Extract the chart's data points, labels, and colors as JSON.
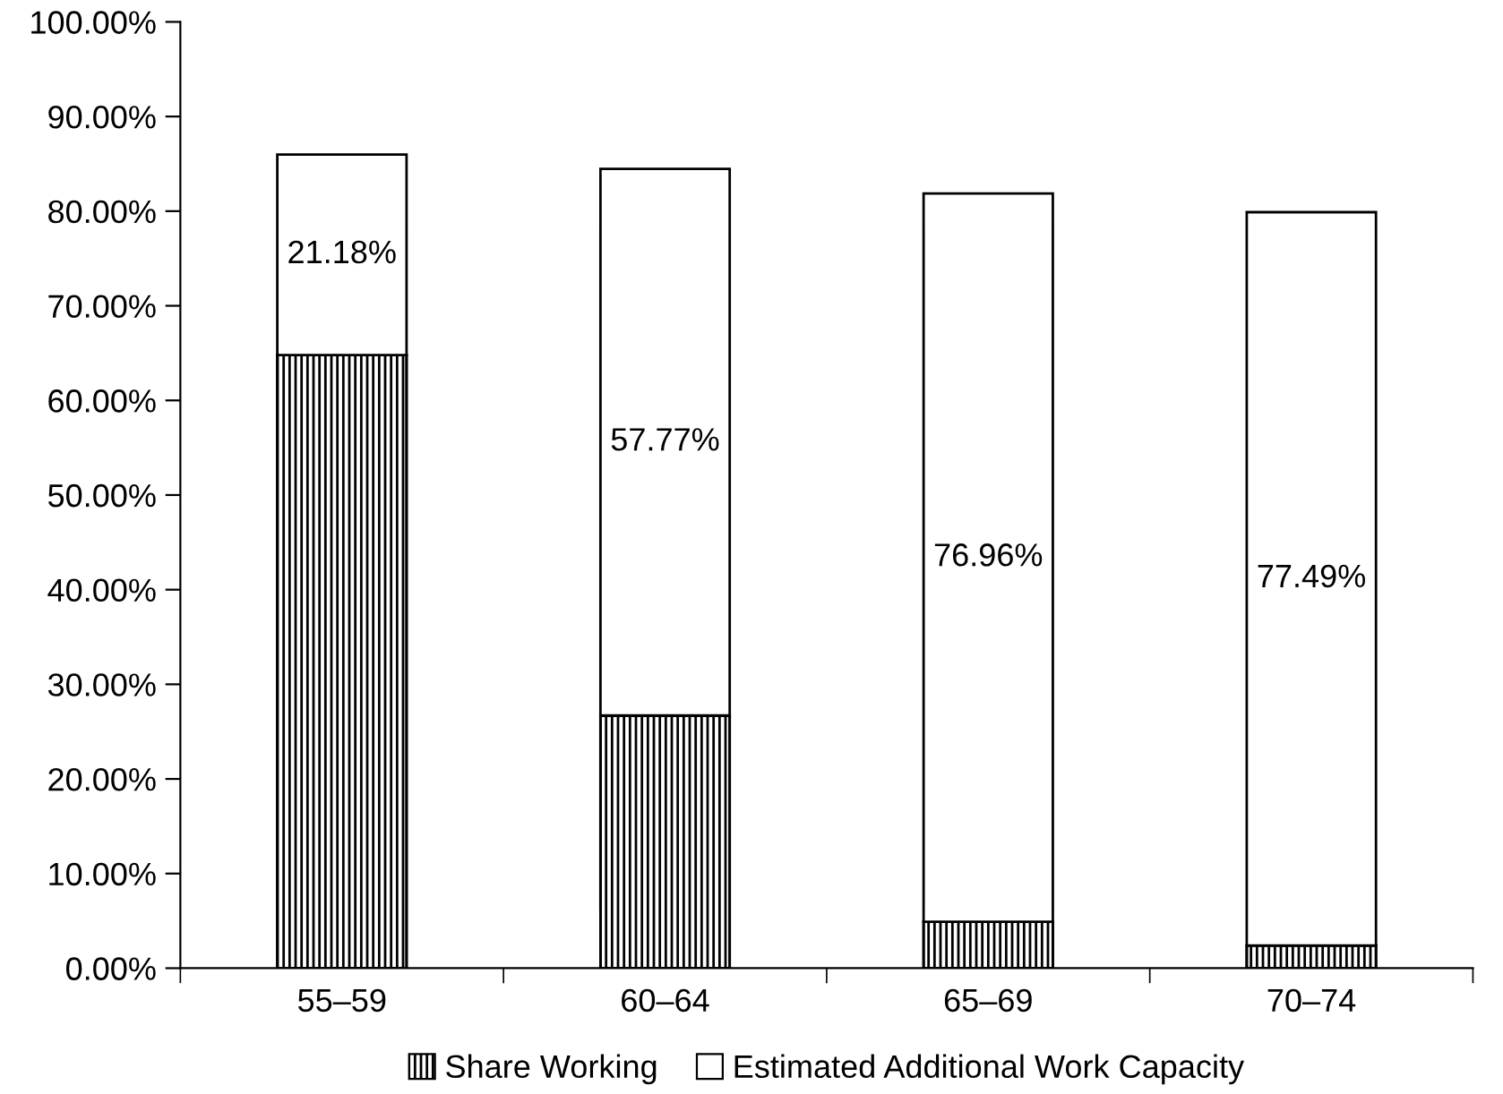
{
  "chart_data": {
    "type": "bar",
    "stacked": true,
    "categories": [
      "55–59",
      "60–64",
      "65–69",
      "70–74"
    ],
    "series": [
      {
        "name": "Share Working",
        "color": "#000000",
        "values": [
          64.8,
          26.7,
          4.9,
          2.4
        ]
      },
      {
        "name": "Estimated Additional Work Capacity",
        "color": "#ffffff",
        "values": [
          21.18,
          57.77,
          76.96,
          77.49
        ],
        "value_labels": [
          "21.18%",
          "57.77%",
          "76.96%",
          "77.49%"
        ]
      }
    ],
    "ylim": [
      0,
      100
    ],
    "yticks": [
      {
        "value": 0,
        "label": "0.00%"
      },
      {
        "value": 10,
        "label": "10.00%"
      },
      {
        "value": 20,
        "label": "20.00%"
      },
      {
        "value": 30,
        "label": "30.00%"
      },
      {
        "value": 40,
        "label": "40.00%"
      },
      {
        "value": 50,
        "label": "50.00%"
      },
      {
        "value": 60,
        "label": "60.00%"
      },
      {
        "value": 70,
        "label": "70.00%"
      },
      {
        "value": 80,
        "label": "80.00%"
      },
      {
        "value": 90,
        "label": "90.00%"
      },
      {
        "value": 100,
        "label": "100.00%"
      }
    ],
    "grid": false,
    "legend": "bottom"
  }
}
